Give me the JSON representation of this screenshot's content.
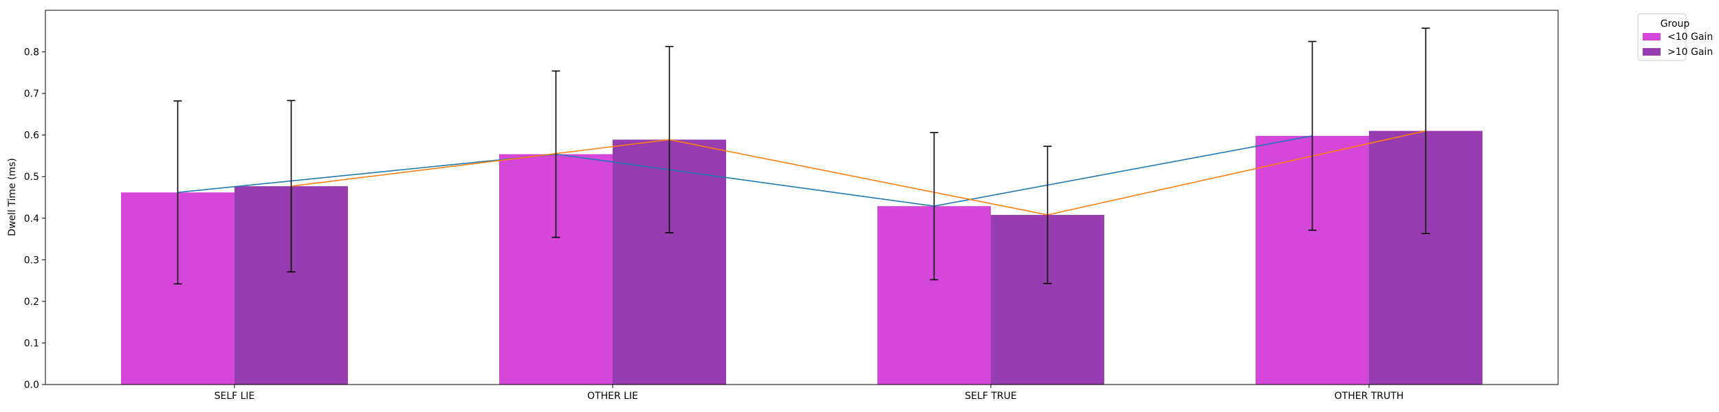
{
  "chart_data": {
    "type": "bar",
    "categories": [
      "SELF LIE",
      "OTHER LIE",
      "SELF TRUE",
      "OTHER TRUTH"
    ],
    "ylabel": "Dwell Time (ms)",
    "xlabel": "",
    "ylim": [
      0,
      0.9
    ],
    "yticks": [
      0.0,
      0.1,
      0.2,
      0.3,
      0.4,
      0.5,
      0.6,
      0.7,
      0.8
    ],
    "ytick_labels": [
      "0.0",
      "0.1",
      "0.2",
      "0.3",
      "0.4",
      "0.5",
      "0.6",
      "0.7",
      "0.8"
    ],
    "grid": false,
    "legend": {
      "title": "Group",
      "placement": "outside-top-right"
    },
    "series": [
      {
        "name": "<10 Gain",
        "color": "#d447d8",
        "values": [
          0.462,
          0.554,
          0.429,
          0.598
        ],
        "errors": [
          0.22,
          0.2,
          0.177,
          0.227
        ],
        "line_color": "#1f77b4"
      },
      {
        "name": ">10 Gain",
        "color": "#973daf",
        "values": [
          0.477,
          0.589,
          0.408,
          0.61
        ],
        "errors": [
          0.206,
          0.224,
          0.165,
          0.247
        ],
        "line_color": "#ff7f0e"
      }
    ]
  }
}
